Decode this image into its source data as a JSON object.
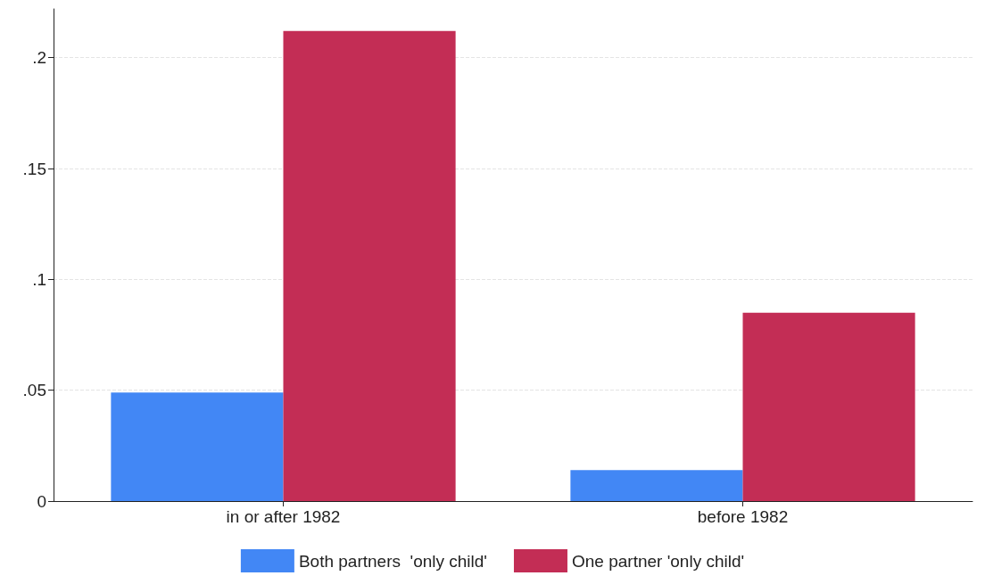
{
  "chart_data": {
    "type": "bar",
    "categories": [
      "in or after 1982",
      "before 1982"
    ],
    "series": [
      {
        "name": "Both partners  'only child'",
        "color": "#4287f5",
        "values": [
          0.049,
          0.014
        ]
      },
      {
        "name": "One partner 'only child'",
        "color": "#c32d55",
        "values": [
          0.212,
          0.085
        ]
      }
    ],
    "ylim": [
      0,
      0.222
    ],
    "yticks": [
      {
        "value": 0,
        "label": "0"
      },
      {
        "value": 0.05,
        "label": ".05"
      },
      {
        "value": 0.1,
        "label": ".1"
      },
      {
        "value": 0.15,
        "label": ".15"
      },
      {
        "value": 0.2,
        "label": ".2"
      }
    ],
    "grid": "y",
    "legend": "bottom"
  }
}
